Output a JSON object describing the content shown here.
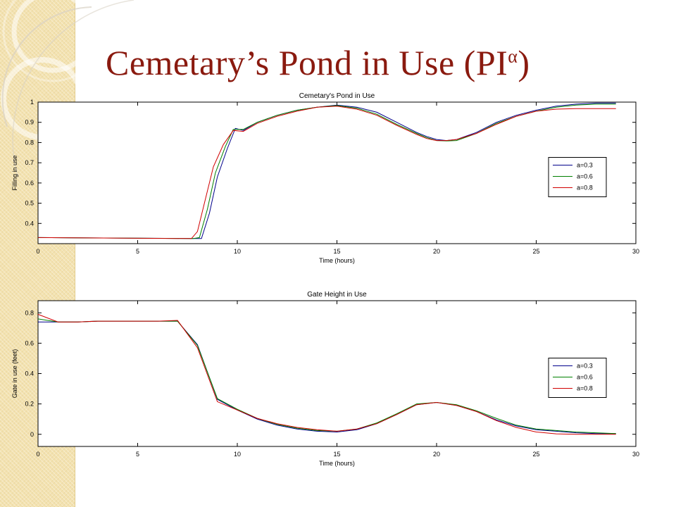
{
  "slide": {
    "title": "Cemetary’s Pond in Use (PI",
    "title_sup": "α",
    "title_end": ")"
  },
  "chart_data": [
    {
      "type": "line",
      "title": "Cemetary's Pond in Use",
      "xlabel": "Time (hours)",
      "ylabel": "Filling in use",
      "xlim": [
        0,
        30
      ],
      "ylim": [
        0.3,
        1.0
      ],
      "xticks": [
        0,
        5,
        10,
        15,
        20,
        25,
        30
      ],
      "yticks": [
        0.4,
        0.5,
        0.6,
        0.7,
        0.8,
        0.9,
        1
      ],
      "legend": "right",
      "series": [
        {
          "name": "a=0.3",
          "color": "#00008b",
          "x": [
            0,
            7.9,
            8.2,
            8.6,
            9,
            9.5,
            9.9,
            10.3,
            11,
            12,
            13,
            14,
            15,
            16,
            17,
            18,
            19,
            19.5,
            20,
            20.5,
            21,
            22,
            23,
            24,
            25,
            26,
            27,
            28,
            29
          ],
          "y": [
            0.33,
            0.325,
            0.325,
            0.45,
            0.63,
            0.77,
            0.87,
            0.86,
            0.9,
            0.935,
            0.96,
            0.975,
            0.985,
            0.975,
            0.95,
            0.9,
            0.85,
            0.83,
            0.815,
            0.81,
            0.815,
            0.85,
            0.9,
            0.935,
            0.96,
            0.98,
            0.99,
            0.995,
            0.995
          ]
        },
        {
          "name": "a=0.6",
          "color": "#008000",
          "x": [
            0,
            7.8,
            8.1,
            8.5,
            8.9,
            9.4,
            9.8,
            10.3,
            11,
            12,
            13,
            14,
            15,
            16,
            17,
            18,
            19,
            19.5,
            20,
            20.5,
            21,
            22,
            23,
            24,
            25,
            26,
            27,
            28,
            29
          ],
          "y": [
            0.33,
            0.325,
            0.33,
            0.47,
            0.65,
            0.78,
            0.865,
            0.865,
            0.9,
            0.935,
            0.96,
            0.975,
            0.983,
            0.97,
            0.94,
            0.89,
            0.845,
            0.825,
            0.81,
            0.808,
            0.81,
            0.845,
            0.895,
            0.93,
            0.955,
            0.975,
            0.985,
            0.99,
            0.99
          ]
        },
        {
          "name": "a=0.8",
          "color": "#d00000",
          "x": [
            0,
            7.7,
            8,
            8.4,
            8.8,
            9.3,
            9.8,
            10.3,
            11,
            12,
            13,
            14,
            15,
            16,
            17,
            18,
            19,
            19.5,
            20,
            20.5,
            21,
            22,
            23,
            24,
            25,
            26,
            27,
            28,
            29
          ],
          "y": [
            0.33,
            0.325,
            0.36,
            0.52,
            0.68,
            0.79,
            0.86,
            0.855,
            0.895,
            0.93,
            0.955,
            0.975,
            0.98,
            0.965,
            0.935,
            0.885,
            0.84,
            0.82,
            0.81,
            0.81,
            0.815,
            0.845,
            0.89,
            0.93,
            0.955,
            0.965,
            0.968,
            0.968,
            0.968
          ]
        }
      ]
    },
    {
      "type": "line",
      "title": "Gate Height in Use",
      "xlabel": "Time (hours)",
      "ylabel": "Gate in use (feet)",
      "xlim": [
        0,
        30
      ],
      "ylim": [
        -0.08,
        0.88
      ],
      "xticks": [
        0,
        5,
        10,
        15,
        20,
        25,
        30
      ],
      "yticks": [
        0,
        0.2,
        0.4,
        0.6,
        0.8
      ],
      "legend": "right",
      "series": [
        {
          "name": "a=0.3",
          "color": "#00008b",
          "x": [
            0,
            1,
            2,
            3,
            4,
            5,
            6,
            7,
            8,
            9,
            10,
            11,
            12,
            13,
            14,
            15,
            16,
            17,
            18,
            19,
            20,
            21,
            22,
            23,
            24,
            25,
            26,
            27,
            28,
            29
          ],
          "y": [
            0.74,
            0.74,
            0.74,
            0.745,
            0.745,
            0.745,
            0.745,
            0.745,
            0.59,
            0.23,
            0.16,
            0.1,
            0.06,
            0.035,
            0.02,
            0.015,
            0.03,
            0.07,
            0.13,
            0.195,
            0.21,
            0.19,
            0.15,
            0.095,
            0.055,
            0.03,
            0.02,
            0.01,
            0.005,
            0.005
          ]
        },
        {
          "name": "a=0.6",
          "color": "#008000",
          "x": [
            0,
            1,
            2,
            3,
            4,
            5,
            6,
            7,
            8,
            9,
            10,
            11,
            12,
            13,
            14,
            15,
            16,
            17,
            18,
            19,
            20,
            21,
            22,
            23,
            24,
            25,
            26,
            27,
            28,
            29
          ],
          "y": [
            0.76,
            0.74,
            0.74,
            0.745,
            0.745,
            0.745,
            0.745,
            0.745,
            0.585,
            0.235,
            0.165,
            0.105,
            0.065,
            0.04,
            0.025,
            0.02,
            0.035,
            0.075,
            0.135,
            0.2,
            0.21,
            0.195,
            0.155,
            0.105,
            0.06,
            0.035,
            0.025,
            0.015,
            0.01,
            0.005
          ]
        },
        {
          "name": "a=0.8",
          "color": "#d00000",
          "x": [
            0,
            1,
            2,
            3,
            4,
            5,
            6,
            7,
            8,
            9,
            10,
            11,
            12,
            13,
            14,
            15,
            16,
            17,
            18,
            19,
            20,
            21,
            22,
            23,
            24,
            25,
            26,
            27,
            28,
            29
          ],
          "y": [
            0.79,
            0.74,
            0.74,
            0.745,
            0.745,
            0.745,
            0.745,
            0.75,
            0.57,
            0.215,
            0.16,
            0.105,
            0.07,
            0.045,
            0.03,
            0.02,
            0.035,
            0.07,
            0.13,
            0.195,
            0.21,
            0.19,
            0.15,
            0.09,
            0.045,
            0.015,
            0.003,
            0,
            0,
            0
          ]
        }
      ]
    }
  ]
}
